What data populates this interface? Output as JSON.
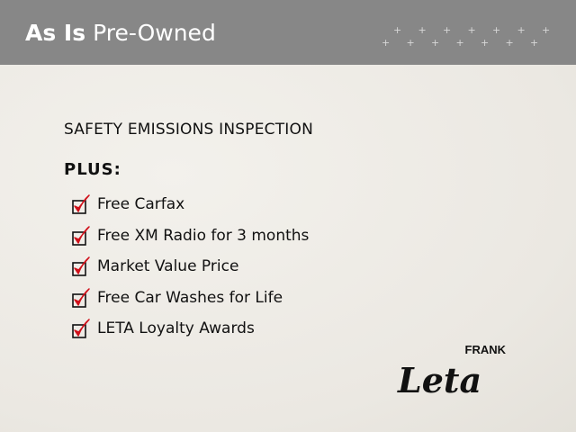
{
  "header": {
    "title_bold": "As Is",
    "title_rest": "Pre-Owned"
  },
  "content": {
    "heading": "SAFETY EMISSIONS INSPECTION",
    "plus_label": "PLUS:",
    "items": [
      {
        "label": "Free Carfax",
        "icon": "checked-box-icon"
      },
      {
        "label": "Free XM Radio for 3 months",
        "icon": "checked-box-icon"
      },
      {
        "label": "Market Value Price",
        "icon": "checked-box-icon"
      },
      {
        "label": "Free Car Washes for Life",
        "icon": "checked-box-icon"
      },
      {
        "label": "LETA Loyalty Awards",
        "icon": "checked-box-icon"
      }
    ]
  },
  "logo": {
    "top": "FRANK",
    "main": "Leta"
  },
  "colors": {
    "header": "#878787",
    "check": "#d0101a",
    "background": "#efede8"
  }
}
